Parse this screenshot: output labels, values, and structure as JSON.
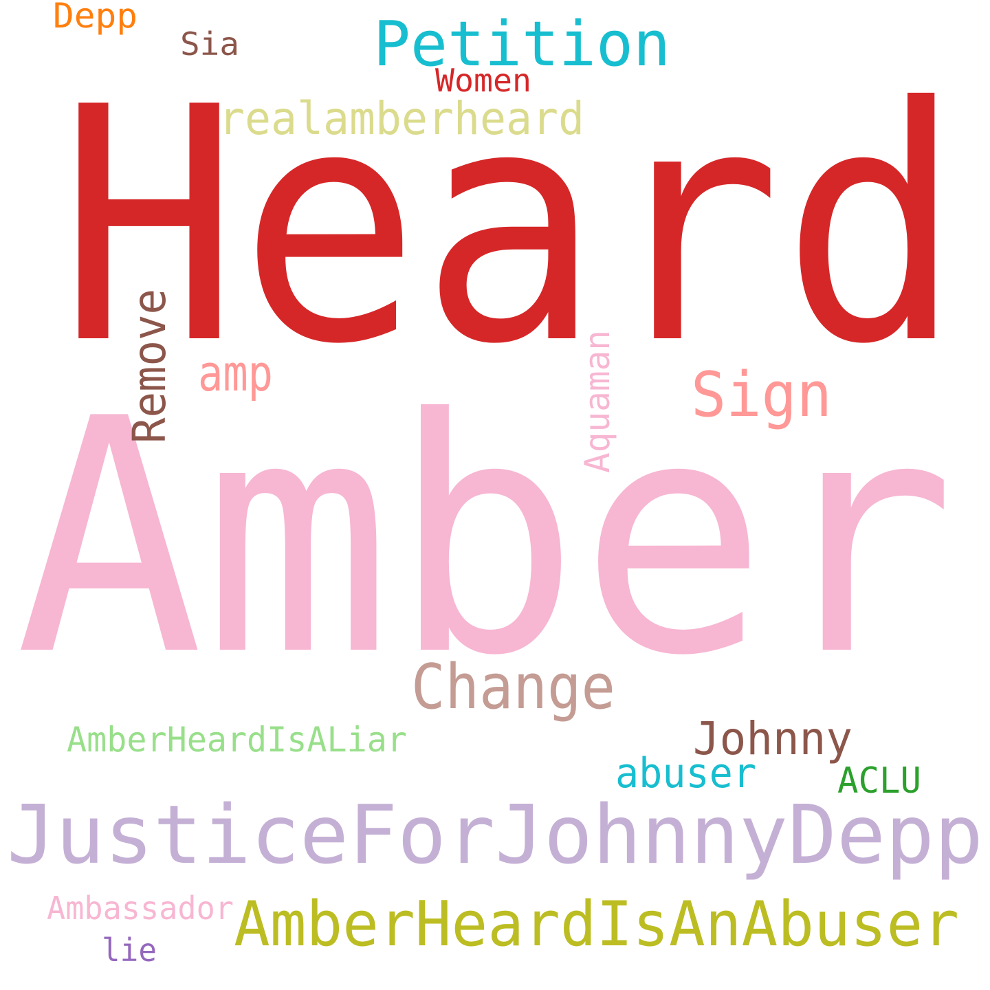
{
  "words": [
    {
      "text": "Heard",
      "color": "#d62728"
    },
    {
      "text": "Amber",
      "color": "#f7b6d2"
    },
    {
      "text": "JusticeForJohnnyDepp",
      "color": "#c5b0d5"
    },
    {
      "text": "AmberHeardIsAnAbuser",
      "color": "#bcbd22"
    },
    {
      "text": "Change",
      "color": "#c49c94"
    },
    {
      "text": "Johnny",
      "color": "#8c564b"
    },
    {
      "text": "abuser",
      "color": "#17becf"
    },
    {
      "text": "ACLU",
      "color": "#2ca02c"
    },
    {
      "text": "AmberHeardIsALiar",
      "color": "#98df8a"
    },
    {
      "text": "Ambassador",
      "color": "#f7b6d2"
    },
    {
      "text": "lie",
      "color": "#9467bd"
    },
    {
      "text": "Sign",
      "color": "#ff9896"
    },
    {
      "text": "amp",
      "color": "#ff9896"
    },
    {
      "text": "Remove",
      "color": "#8c564b"
    },
    {
      "text": "Aquaman",
      "color": "#f7b6d2"
    },
    {
      "text": "realamberheard",
      "color": "#dbdb8d"
    },
    {
      "text": "Petition",
      "color": "#17becf"
    },
    {
      "text": "Women",
      "color": "#d62728"
    },
    {
      "text": "Sia",
      "color": "#8c564b"
    },
    {
      "text": "Depp",
      "color": "#ff7f0e"
    }
  ]
}
